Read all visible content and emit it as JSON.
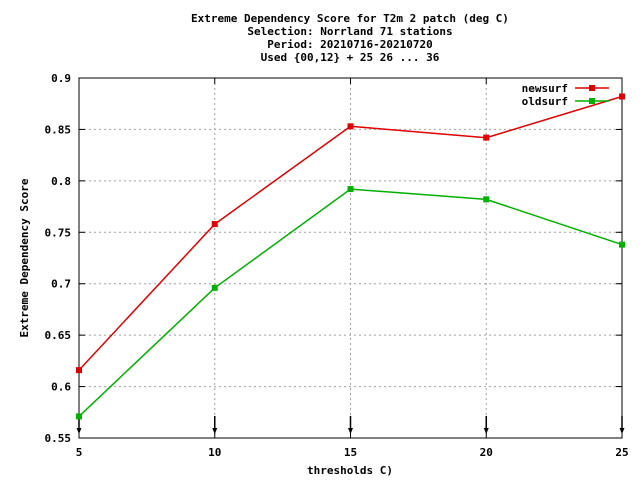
{
  "chart_data": {
    "type": "line",
    "title_lines": [
      "Extreme Dependency Score  for T2m 2 patch (deg C)",
      "Selection: Norrland     71 stations",
      "Period: 20210716-20210720",
      "Used {00,12} + 25 26 ... 36"
    ],
    "xlabel": "thresholds C)",
    "ylabel": "Extreme Dependency Score",
    "xlim": [
      5,
      25
    ],
    "ylim": [
      0.55,
      0.9
    ],
    "xticks": [
      5,
      10,
      15,
      20,
      25
    ],
    "yticks": [
      0.55,
      0.6,
      0.65,
      0.7,
      0.75,
      0.8,
      0.85,
      0.9
    ],
    "xtick_labels": [
      "5",
      "10",
      "15",
      "20",
      "25"
    ],
    "ytick_labels": [
      "0.55",
      "0.6",
      "0.65",
      "0.7",
      "0.75",
      "0.8",
      "0.85",
      "0.9"
    ],
    "grid": true,
    "legend_position": "top-right",
    "series": [
      {
        "name": "newsurf",
        "color": "#e00000",
        "x": [
          5,
          10,
          15,
          20,
          25
        ],
        "values": [
          0.616,
          0.758,
          0.853,
          0.842,
          0.882
        ]
      },
      {
        "name": "oldsurf",
        "color": "#00b000",
        "x": [
          5,
          10,
          15,
          20,
          25
        ],
        "values": [
          0.571,
          0.696,
          0.792,
          0.782,
          0.738
        ]
      }
    ]
  }
}
